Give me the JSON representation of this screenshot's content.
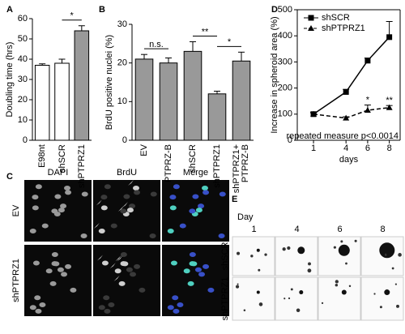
{
  "chart_data": [
    {
      "type": "bar",
      "panel_label": "A",
      "y_label": "Doubling time (hrs)",
      "categories": [
        "E98nt",
        "shSCR",
        "shPTPRZ1"
      ],
      "values": [
        37,
        38,
        54
      ],
      "errors": [
        0.7,
        2,
        2.5
      ],
      "colors": [
        "#ffffff",
        "#ffffff",
        "#999999"
      ],
      "ylim": [
        0,
        60
      ],
      "yticks": [
        0,
        10,
        20,
        30,
        40,
        50,
        60
      ],
      "annotations": [
        {
          "text": "*",
          "categories": [
            "shSCR",
            "shPTPRZ1"
          ]
        }
      ]
    },
    {
      "type": "bar",
      "panel_label": "B",
      "y_label": "BrdU positive nuclei (%)",
      "categories": [
        "EV",
        "PTPRZ-B",
        "shSCR",
        "shPTPRZ1",
        "shPTPRZ1+ PTPRZ-B"
      ],
      "values": [
        21,
        20,
        23,
        12,
        20.5
      ],
      "errors": [
        1.2,
        1.3,
        2.5,
        0.7,
        2.3
      ],
      "colors": [
        "#999999",
        "#999999",
        "#999999",
        "#999999",
        "#999999"
      ],
      "ylim": [
        0,
        30
      ],
      "yticks": [
        0,
        10,
        20,
        30
      ],
      "annotations": [
        {
          "text": "n.s.",
          "categories": [
            "EV",
            "PTPRZ-B"
          ]
        },
        {
          "text": "**",
          "categories": [
            "shSCR",
            "shPTPRZ1"
          ]
        },
        {
          "text": "*",
          "categories": [
            "shPTPRZ1",
            "shPTPRZ1+ PTPRZ-B"
          ]
        }
      ]
    },
    {
      "type": "line",
      "panel_label": "D",
      "y_label": "Increase in spheroid area (%)",
      "x_label": "days",
      "x": [
        1,
        4,
        6,
        8
      ],
      "xlim": [
        -0.5,
        9
      ],
      "xticks": [
        1,
        4,
        6,
        8
      ],
      "ylim": [
        0,
        500
      ],
      "yticks": [
        0,
        100,
        200,
        300,
        400,
        500
      ],
      "series": [
        {
          "name": "shSCR",
          "color": "#000000",
          "marker": "square",
          "line_style": "solid",
          "values": [
            100,
            185,
            305,
            395
          ],
          "errors": [
            8,
            10,
            10,
            60
          ]
        },
        {
          "name": "shPTPRZ1",
          "color": "#000000",
          "marker": "triangle",
          "line_style": "dashed",
          "values": [
            100,
            85,
            115,
            125
          ],
          "errors": [
            5,
            5,
            20,
            8
          ]
        }
      ],
      "annotations": [
        {
          "text": "*",
          "x": 6
        },
        {
          "text": "**",
          "x": 8
        }
      ],
      "note": "repeated measure p<0.0014",
      "legend": "upper left"
    }
  ],
  "panel_c": {
    "label": "C",
    "columns": [
      "DAPI",
      "BrdU",
      "Merge"
    ],
    "rows": [
      "EV",
      "shPTPRZ1"
    ]
  },
  "panel_e": {
    "label": "E",
    "day_label": "Day",
    "columns": [
      "1",
      "4",
      "6",
      "8"
    ],
    "rows": [
      "shSCR",
      "shPTPRZ1"
    ]
  }
}
